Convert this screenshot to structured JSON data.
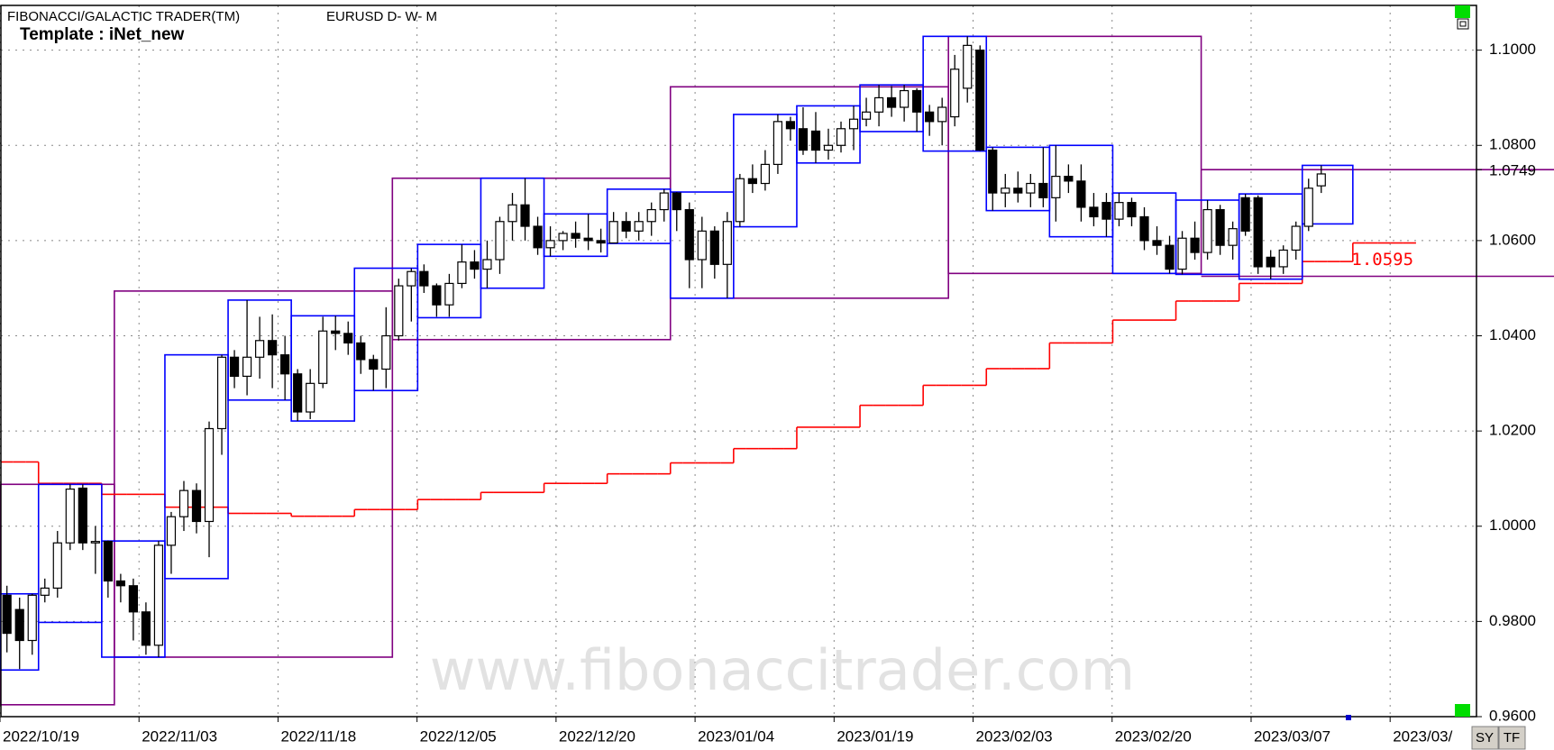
{
  "chart_data": {
    "type": "candlestick",
    "title": "FIBONACCI/GALACTIC TRADER(TM)",
    "symbol": "EURUSD D- W- M",
    "template": "Template : iNet_new",
    "watermark": "www.fibonaccitrader.com",
    "buttons": [
      "SY",
      "TF"
    ],
    "categories": [
      "2022/10/19",
      null,
      null,
      null,
      null,
      null,
      null,
      null,
      null,
      null,
      null,
      "2022/11/03",
      null,
      null,
      null,
      null,
      null,
      null,
      null,
      null,
      null,
      null,
      "2022/11/18",
      null,
      null,
      null,
      null,
      null,
      null,
      null,
      null,
      null,
      null,
      "2022/12/05",
      null,
      null,
      null,
      null,
      null,
      null,
      null,
      null,
      null,
      null,
      "2022/12/20",
      null,
      null,
      null,
      null,
      null,
      null,
      null,
      null,
      null,
      null,
      "2023/01/04",
      null,
      null,
      null,
      null,
      null,
      null,
      null,
      null,
      null,
      null,
      "2023/01/19",
      null,
      null,
      null,
      null,
      null,
      null,
      null,
      null,
      null,
      null,
      "2023/02/03",
      null,
      null,
      null,
      null,
      null,
      null,
      null,
      null,
      null,
      null,
      "2023/02/20",
      null,
      null,
      null,
      null,
      null,
      null,
      null,
      null,
      null,
      null,
      "2023/03/07",
      null,
      null,
      null,
      null,
      null,
      null,
      null,
      null,
      null,
      null,
      "2023/03/",
      null,
      null,
      null,
      null,
      null,
      null
    ],
    "open": [
      0.9855,
      0.9825,
      0.976,
      0.9855,
      0.987,
      0.9965,
      1.008,
      0.9965,
      0.9968,
      0.9885,
      0.9875,
      0.982,
      0.975,
      0.996,
      1.002,
      1.0075,
      1.001,
      1.0205,
      1.0355,
      1.0315,
      1.0355,
      1.039,
      1.036,
      1.032,
      1.024,
      1.03,
      1.041,
      1.0405,
      1.0385,
      1.035,
      1.033,
      1.04,
      1.0505,
      1.0535,
      1.0505,
      1.0465,
      1.051,
      1.0555,
      1.054,
      1.056,
      1.064,
      1.0675,
      1.063,
      1.0585,
      1.06,
      1.0615,
      1.0605,
      1.06,
      1.0595,
      1.064,
      1.062,
      1.064,
      1.0665,
      1.07,
      1.0665,
      1.056,
      1.062,
      1.055,
      1.064,
      1.073,
      1.072,
      1.076,
      1.085,
      1.0835,
      1.083,
      1.079,
      1.08,
      1.0835,
      1.0855,
      1.087,
      1.09,
      1.088,
      1.0915,
      1.087,
      1.085,
      1.086,
      1.092,
      1.1,
      1.079,
      1.07,
      1.071,
      1.07,
      1.072,
      1.069,
      1.0735,
      1.0725,
      1.067,
      1.068,
      1.0645,
      1.068,
      1.065,
      1.06,
      1.059,
      1.054,
      1.0605,
      1.0575,
      1.0665,
      1.059,
      1.069,
      1.069,
      1.0565,
      1.0545,
      1.058,
      1.063,
      1.0715,
      null,
      null,
      null,
      null,
      null,
      null,
      null,
      null,
      null,
      null,
      null,
      null
    ],
    "high": [
      0.9875,
      0.985,
      0.9858,
      0.989,
      0.999,
      1.0088,
      1.0088,
      1.0,
      0.997,
      0.99,
      0.989,
      0.984,
      0.9969,
      1.003,
      1.0095,
      1.009,
      1.022,
      1.036,
      1.037,
      1.0475,
      1.044,
      1.0445,
      1.04,
      1.033,
      1.033,
      1.044,
      1.0442,
      1.043,
      1.04,
      1.036,
      1.046,
      1.052,
      1.0542,
      1.055,
      1.051,
      1.053,
      1.0592,
      1.058,
      1.06,
      1.065,
      1.07,
      1.0731,
      1.065,
      1.063,
      1.062,
      1.064,
      1.0656,
      1.0625,
      1.066,
      1.066,
      1.066,
      1.068,
      1.0708,
      1.0702,
      1.068,
      1.065,
      1.063,
      1.066,
      1.074,
      1.076,
      1.079,
      1.0865,
      1.086,
      1.088,
      1.087,
      1.0835,
      1.085,
      1.0883,
      1.09,
      1.0927,
      1.0925,
      1.0927,
      1.092,
      1.0885,
      1.09,
      1.099,
      1.1029,
      1.101,
      1.0796,
      1.074,
      1.0745,
      1.074,
      1.0796,
      1.08,
      1.076,
      1.076,
      1.07,
      1.07,
      1.07,
      1.069,
      1.067,
      1.063,
      1.061,
      1.062,
      1.064,
      1.0685,
      1.0675,
      1.064,
      1.0698,
      1.0695,
      1.058,
      1.059,
      1.064,
      1.073,
      1.0758,
      null,
      null,
      null,
      null,
      null,
      null,
      null,
      null,
      null,
      null,
      null,
      null
    ],
    "low": [
      0.9735,
      0.97,
      0.973,
      0.984,
      0.985,
      0.995,
      0.995,
      0.99,
      0.985,
      0.984,
      0.976,
      0.973,
      0.9725,
      0.99,
      0.999,
      0.9985,
      0.9935,
      1.015,
      1.029,
      1.0275,
      1.031,
      1.029,
      1.0265,
      1.0221,
      1.0225,
      1.029,
      1.037,
      1.036,
      1.032,
      1.0285,
      1.029,
      1.039,
      1.043,
      1.049,
      1.044,
      1.044,
      1.05,
      1.052,
      1.05,
      1.053,
      1.06,
      1.06,
      1.057,
      1.0567,
      1.058,
      1.0585,
      1.058,
      1.0575,
      1.0594,
      1.0605,
      1.06,
      1.061,
      1.064,
      1.062,
      1.05,
      1.05,
      1.052,
      1.0479,
      1.0629,
      1.07,
      1.0705,
      1.074,
      1.081,
      1.078,
      1.0763,
      1.077,
      1.0785,
      1.079,
      1.084,
      1.084,
      1.086,
      1.085,
      1.0829,
      1.082,
      1.08,
      1.084,
      1.089,
      1.0788,
      1.0663,
      1.067,
      1.068,
      1.067,
      1.067,
      1.064,
      1.07,
      1.064,
      1.063,
      1.0608,
      1.063,
      1.063,
      1.058,
      1.057,
      1.0531,
      1.0529,
      1.056,
      1.056,
      1.057,
      1.056,
      1.061,
      1.053,
      1.0519,
      1.053,
      1.056,
      1.062,
      1.07,
      null,
      null,
      null,
      null,
      null,
      null,
      null,
      null,
      null,
      null,
      null,
      null
    ],
    "close": [
      0.9775,
      0.976,
      0.9855,
      0.987,
      0.9965,
      1.0078,
      0.9965,
      0.9968,
      0.9885,
      0.9875,
      0.982,
      0.975,
      0.996,
      1.002,
      1.0075,
      1.001,
      1.0205,
      1.0355,
      1.0315,
      1.0355,
      1.039,
      1.036,
      1.032,
      1.024,
      1.03,
      1.041,
      1.0405,
      1.0385,
      1.035,
      1.033,
      1.04,
      1.0505,
      1.0535,
      1.0505,
      1.0465,
      1.051,
      1.0555,
      1.054,
      1.056,
      1.064,
      1.0675,
      1.063,
      1.0585,
      1.06,
      1.0615,
      1.0605,
      1.06,
      1.0595,
      1.064,
      1.062,
      1.064,
      1.0665,
      1.07,
      1.0665,
      1.056,
      1.062,
      1.055,
      1.064,
      1.073,
      1.072,
      1.076,
      1.085,
      1.0835,
      1.079,
      1.079,
      1.08,
      1.0835,
      1.0855,
      1.087,
      1.09,
      1.088,
      1.0915,
      1.087,
      1.085,
      1.088,
      1.096,
      1.101,
      1.079,
      1.07,
      1.071,
      1.07,
      1.072,
      1.069,
      1.0735,
      1.0725,
      1.067,
      1.065,
      1.0645,
      1.068,
      1.065,
      1.06,
      1.059,
      1.054,
      1.0605,
      1.0575,
      1.0665,
      1.059,
      1.0625,
      1.062,
      1.0545,
      1.0545,
      1.058,
      1.063,
      1.071,
      1.074,
      null,
      null,
      null,
      null,
      null,
      null,
      null,
      null,
      null,
      null,
      null,
      null
    ],
    "up_color": "#ffffff",
    "down_color": "#000000",
    "weekly_ranges": {
      "color": "#0000ff",
      "boxes": [
        {
          "start": 0,
          "end": 2,
          "high": 0.9858,
          "low": 0.9698
        },
        {
          "start": 3,
          "end": 7,
          "high": 1.0088,
          "low": 0.9798
        },
        {
          "start": 8,
          "end": 12,
          "high": 0.9969,
          "low": 0.9725
        },
        {
          "start": 13,
          "end": 17,
          "high": 1.036,
          "low": 0.989
        },
        {
          "start": 18,
          "end": 22,
          "high": 1.0475,
          "low": 1.0265
        },
        {
          "start": 23,
          "end": 27,
          "high": 1.0442,
          "low": 1.0221
        },
        {
          "start": 28,
          "end": 32,
          "high": 1.0542,
          "low": 1.0285
        },
        {
          "start": 33,
          "end": 37,
          "high": 1.0592,
          "low": 1.0438
        },
        {
          "start": 38,
          "end": 42,
          "high": 1.0731,
          "low": 1.05
        },
        {
          "start": 43,
          "end": 47,
          "high": 1.0656,
          "low": 1.0567
        },
        {
          "start": 48,
          "end": 52,
          "high": 1.0708,
          "low": 1.0594
        },
        {
          "start": 53,
          "end": 57,
          "high": 1.0702,
          "low": 1.0479
        },
        {
          "start": 58,
          "end": 62,
          "high": 1.0865,
          "low": 1.0629
        },
        {
          "start": 63,
          "end": 67,
          "high": 1.0883,
          "low": 1.0763
        },
        {
          "start": 68,
          "end": 72,
          "high": 1.0927,
          "low": 1.0829
        },
        {
          "start": 73,
          "end": 77,
          "high": 1.1029,
          "low": 1.0788
        },
        {
          "start": 78,
          "end": 82,
          "high": 1.0796,
          "low": 1.0663
        },
        {
          "start": 83,
          "end": 87,
          "high": 1.08,
          "low": 1.0608
        },
        {
          "start": 88,
          "end": 92,
          "high": 1.07,
          "low": 1.0531
        },
        {
          "start": 93,
          "end": 97,
          "high": 1.0685,
          "low": 1.0529
        },
        {
          "start": 98,
          "end": 102,
          "high": 1.0698,
          "low": 1.0519
        },
        {
          "start": 103,
          "end": 106,
          "high": 1.0758,
          "low": 1.0635
        }
      ]
    },
    "monthly_ranges": {
      "color": "#800080",
      "boxes": [
        {
          "start": 0,
          "end": 8,
          "high": 1.0088,
          "low": 0.9625
        },
        {
          "start": 9,
          "end": 30,
          "high": 1.0494,
          "low": 0.9725
        },
        {
          "start": 31,
          "end": 52,
          "high": 1.0731,
          "low": 1.0392
        },
        {
          "start": 53,
          "end": 74,
          "high": 1.0923,
          "low": 1.0479
        },
        {
          "start": 75,
          "end": 94,
          "high": 1.1029,
          "low": 1.0531
        },
        {
          "start": 95,
          "end": 116,
          "high": 1.0749,
          "low": 1.0525
        }
      ]
    },
    "step_line": {
      "color": "#ff0000",
      "label": "1.0595",
      "values": [
        1.0135,
        1.0135,
        1.0135,
        1.009,
        1.009,
        1.009,
        1.009,
        1.009,
        1.0067,
        1.0067,
        1.0067,
        1.0067,
        1.0067,
        1.004,
        1.004,
        1.004,
        1.004,
        1.004,
        1.0027,
        1.0027,
        1.0027,
        1.0027,
        1.0027,
        1.0021,
        1.0021,
        1.0021,
        1.0021,
        1.0021,
        1.0035,
        1.0035,
        1.0035,
        1.0035,
        1.0035,
        1.0056,
        1.0056,
        1.0056,
        1.0056,
        1.0056,
        1.0071,
        1.0071,
        1.0071,
        1.0071,
        1.0071,
        1.009,
        1.009,
        1.009,
        1.009,
        1.009,
        1.011,
        1.011,
        1.011,
        1.011,
        1.011,
        1.0133,
        1.0133,
        1.0133,
        1.0133,
        1.0133,
        1.0163,
        1.0163,
        1.0163,
        1.0163,
        1.0163,
        1.0208,
        1.0208,
        1.0208,
        1.0208,
        1.0208,
        1.0254,
        1.0254,
        1.0254,
        1.0254,
        1.0254,
        1.0296,
        1.0296,
        1.0296,
        1.0296,
        1.0296,
        1.0331,
        1.0331,
        1.0331,
        1.0331,
        1.0331,
        1.0385,
        1.0385,
        1.0385,
        1.0385,
        1.0385,
        1.0433,
        1.0433,
        1.0433,
        1.0433,
        1.0433,
        1.0473,
        1.0473,
        1.0473,
        1.0473,
        1.0473,
        1.051,
        1.051,
        1.051,
        1.051,
        1.051,
        1.0556,
        1.0556,
        1.0556,
        1.0556,
        1.0595,
        1.0595,
        1.0595,
        1.0595,
        1.0595,
        null,
        null,
        null,
        null,
        null
      ]
    },
    "last_price": {
      "value": 1.0749,
      "label": "1.0749"
    },
    "ylim": [
      0.96,
      1.1094
    ],
    "yticks": [
      {
        "value": 0.96,
        "label": "0.9600"
      },
      {
        "value": 0.98,
        "label": "0.9800"
      },
      {
        "value": 1.0,
        "label": "1.0000"
      },
      {
        "value": 1.02,
        "label": "1.0200"
      },
      {
        "value": 1.04,
        "label": "1.0400"
      },
      {
        "value": 1.06,
        "label": "1.0600"
      },
      {
        "value": 1.08,
        "label": "1.0800"
      },
      {
        "value": 1.1,
        "label": "1.1000"
      }
    ],
    "grid": true
  }
}
